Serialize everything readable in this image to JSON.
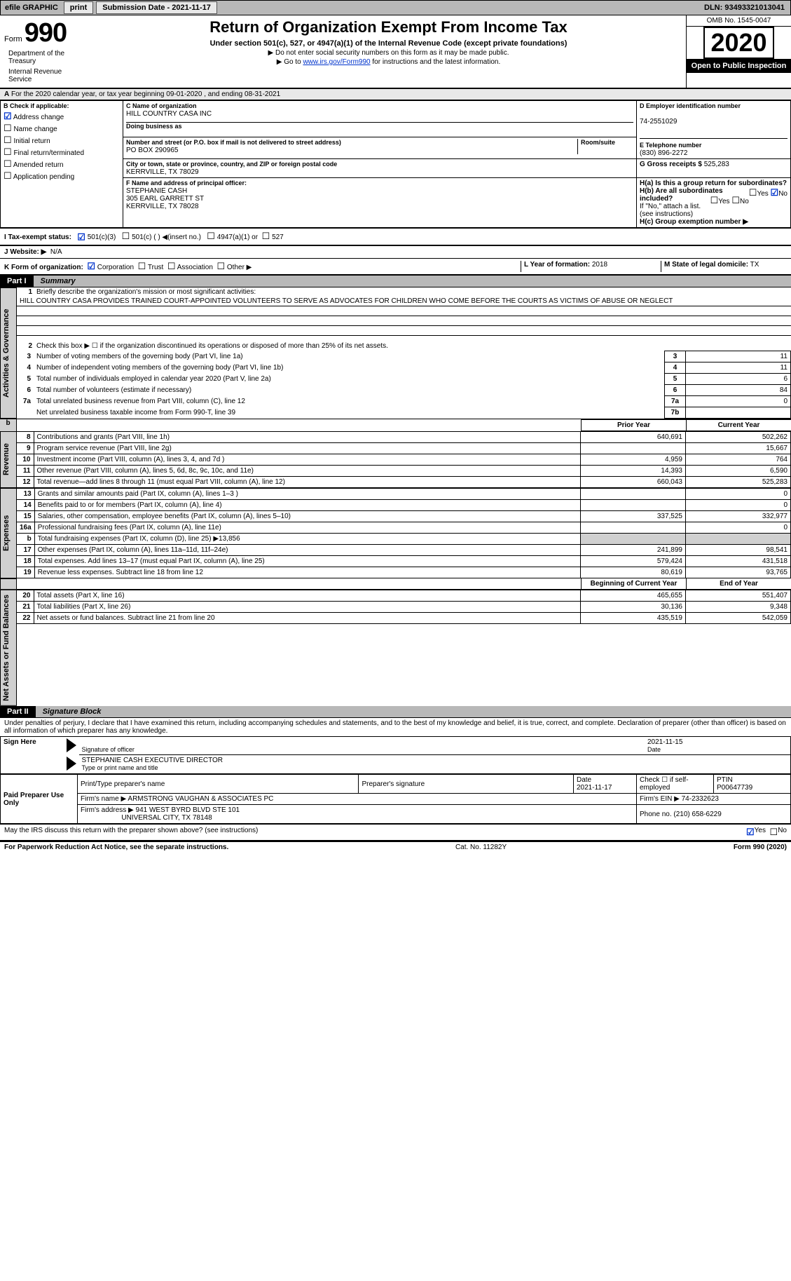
{
  "topbar": {
    "efile_label": "efile GRAPHIC",
    "print_btn": "print",
    "submission_label": "Submission Date - 2021-11-17",
    "dln": "DLN: 93493321013041"
  },
  "header": {
    "form_word": "Form",
    "form_number": "990",
    "title": "Return of Organization Exempt From Income Tax",
    "subtitle": "Under section 501(c), 527, or 4947(a)(1) of the Internal Revenue Code (except private foundations)",
    "note1": "▶ Do not enter social security numbers on this form as it may be made public.",
    "note2_prefix": "▶ Go to ",
    "note2_link": "www.irs.gov/Form990",
    "note2_suffix": " for instructions and the latest information.",
    "dept1": "Department of the Treasury",
    "dept2": "Internal Revenue Service",
    "omb": "OMB No. 1545-0047",
    "year": "2020",
    "open": "Open to Public Inspection"
  },
  "section_a": "For the 2020 calendar year, or tax year beginning 09-01-2020    , and ending 08-31-2021",
  "section_b": {
    "label": "B Check if applicable:",
    "items": [
      {
        "label": "Address change",
        "checked": true
      },
      {
        "label": "Name change",
        "checked": false
      },
      {
        "label": "Initial return",
        "checked": false
      },
      {
        "label": "Final return/terminated",
        "checked": false
      },
      {
        "label": "Amended return",
        "checked": false
      },
      {
        "label": "Application pending",
        "checked": false
      }
    ]
  },
  "section_c": {
    "label": "C Name of organization",
    "name": "HILL COUNTRY CASA INC",
    "dba_label": "Doing business as",
    "dba": "",
    "addr_label": "Number and street (or P.O. box if mail is not delivered to street address)",
    "addr": "PO BOX 290965",
    "room_label": "Room/suite",
    "room": "",
    "city_label": "City or town, state or province, country, and ZIP or foreign postal code",
    "city": "KERRVILLE, TX  78029"
  },
  "section_d": {
    "label": "D Employer identification number",
    "value": "74-2551029"
  },
  "section_e": {
    "label": "E Telephone number",
    "value": "(830) 896-2272"
  },
  "section_g": {
    "label": "G Gross receipts $",
    "value": "525,283"
  },
  "section_f": {
    "label": "F  Name and address of principal officer:",
    "name": "STEPHANIE CASH",
    "addr1": "305 EARL GARRETT ST",
    "addr2": "KERRVILLE, TX  78028"
  },
  "section_h": {
    "ha_label": "H(a)  Is this a group return for subordinates?",
    "ha_yes": "Yes",
    "ha_no": "No",
    "hb_label": "H(b)  Are all subordinates included?",
    "hb_note": "If \"No,\" attach a list. (see instructions)",
    "hc_label": "H(c)  Group exemption number ▶"
  },
  "section_i": {
    "label": "I    Tax-exempt status:",
    "opt1": "501(c)(3)",
    "opt2": "501(c) (  ) ◀(insert no.)",
    "opt3": "4947(a)(1) or",
    "opt4": "527"
  },
  "section_j": {
    "label": "J   Website: ▶",
    "value": "N/A"
  },
  "section_k": {
    "label": "K Form of organization:",
    "opt1": "Corporation",
    "opt2": "Trust",
    "opt3": "Association",
    "opt4": "Other ▶"
  },
  "section_l": {
    "label": "L Year of formation:",
    "value": "2018"
  },
  "section_m": {
    "label": "M State of legal domicile:",
    "value": "TX"
  },
  "part1": {
    "hdr": "Part I",
    "title": "Summary",
    "line1_label": "Briefly describe the organization's mission or most significant activities:",
    "mission": "HILL COUNTRY CASA PROVIDES TRAINED COURT-APPOINTED VOLUNTEERS TO SERVE AS ADVOCATES FOR CHILDREN WHO COME BEFORE THE COURTS AS VICTIMS OF ABUSE OR NEGLECT",
    "line2": "Check this box ▶ ☐  if the organization discontinued its operations or disposed of more than 25% of its net assets.",
    "rows_gov": [
      {
        "n": "3",
        "t": "Number of voting members of the governing body (Part VI, line 1a)",
        "box": "3",
        "val": "11"
      },
      {
        "n": "4",
        "t": "Number of independent voting members of the governing body (Part VI, line 1b)",
        "box": "4",
        "val": "11"
      },
      {
        "n": "5",
        "t": "Total number of individuals employed in calendar year 2020 (Part V, line 2a)",
        "box": "5",
        "val": "6"
      },
      {
        "n": "6",
        "t": "Total number of volunteers (estimate if necessary)",
        "box": "6",
        "val": "84"
      },
      {
        "n": "7a",
        "t": "Total unrelated business revenue from Part VIII, column (C), line 12",
        "box": "7a",
        "val": "0"
      },
      {
        "n": "",
        "t": "Net unrelated business taxable income from Form 990-T, line 39",
        "box": "7b",
        "val": ""
      }
    ],
    "col_prior": "Prior Year",
    "col_current": "Current Year",
    "rev_tab": "Revenue",
    "exp_tab": "Expenses",
    "gov_tab": "Activities & Governance",
    "net_tab": "Net Assets or Fund Balances",
    "rev_rows": [
      {
        "n": "8",
        "t": "Contributions and grants (Part VIII, line 1h)",
        "py": "640,691",
        "cy": "502,262"
      },
      {
        "n": "9",
        "t": "Program service revenue (Part VIII, line 2g)",
        "py": "",
        "cy": "15,667"
      },
      {
        "n": "10",
        "t": "Investment income (Part VIII, column (A), lines 3, 4, and 7d )",
        "py": "4,959",
        "cy": "764"
      },
      {
        "n": "11",
        "t": "Other revenue (Part VIII, column (A), lines 5, 6d, 8c, 9c, 10c, and 11e)",
        "py": "14,393",
        "cy": "6,590"
      },
      {
        "n": "12",
        "t": "Total revenue—add lines 8 through 11 (must equal Part VIII, column (A), line 12)",
        "py": "660,043",
        "cy": "525,283"
      }
    ],
    "exp_rows": [
      {
        "n": "13",
        "t": "Grants and similar amounts paid (Part IX, column (A), lines 1–3 )",
        "py": "",
        "cy": "0"
      },
      {
        "n": "14",
        "t": "Benefits paid to or for members (Part IX, column (A), line 4)",
        "py": "",
        "cy": "0"
      },
      {
        "n": "15",
        "t": "Salaries, other compensation, employee benefits (Part IX, column (A), lines 5–10)",
        "py": "337,525",
        "cy": "332,977"
      },
      {
        "n": "16a",
        "t": "Professional fundraising fees (Part IX, column (A), line 11e)",
        "py": "",
        "cy": "0"
      },
      {
        "n": "b",
        "t": "Total fundraising expenses (Part IX, column (D), line 25) ▶13,856",
        "py": "GREY",
        "cy": "GREY"
      },
      {
        "n": "17",
        "t": "Other expenses (Part IX, column (A), lines 11a–11d, 11f–24e)",
        "py": "241,899",
        "cy": "98,541"
      },
      {
        "n": "18",
        "t": "Total expenses. Add lines 13–17 (must equal Part IX, column (A), line 25)",
        "py": "579,424",
        "cy": "431,518"
      },
      {
        "n": "19",
        "t": "Revenue less expenses. Subtract line 18 from line 12",
        "py": "80,619",
        "cy": "93,765"
      }
    ],
    "col_boy": "Beginning of Current Year",
    "col_eoy": "End of Year",
    "net_rows": [
      {
        "n": "20",
        "t": "Total assets (Part X, line 16)",
        "py": "465,655",
        "cy": "551,407"
      },
      {
        "n": "21",
        "t": "Total liabilities (Part X, line 26)",
        "py": "30,136",
        "cy": "9,348"
      },
      {
        "n": "22",
        "t": "Net assets or fund balances. Subtract line 21 from line 20",
        "py": "435,519",
        "cy": "542,059"
      }
    ]
  },
  "part2": {
    "hdr": "Part II",
    "title": "Signature Block",
    "decl": "Under penalties of perjury, I declare that I have examined this return, including accompanying schedules and statements, and to the best of my knowledge and belief, it is true, correct, and complete. Declaration of preparer (other than officer) is based on all information of which preparer has any knowledge.",
    "sign_here": "Sign Here",
    "sig_officer": "Signature of officer",
    "sig_date": "2021-11-15",
    "date_label": "Date",
    "officer_name": "STEPHANIE CASH  EXECUTIVE DIRECTOR",
    "officer_caption": "Type or print name and title",
    "paid": "Paid Preparer Use Only",
    "prep_name_label": "Print/Type preparer's name",
    "prep_sig_label": "Preparer's signature",
    "prep_date_label": "Date",
    "prep_date": "2021-11-17",
    "self_emp": "Check ☐ if self-employed",
    "ptin_label": "PTIN",
    "ptin": "P00647739",
    "firm_name_label": "Firm's name    ▶",
    "firm_name": "ARMSTRONG VAUGHAN & ASSOCIATES PC",
    "firm_ein_label": "Firm's EIN ▶",
    "firm_ein": "74-2332623",
    "firm_addr_label": "Firm's address ▶",
    "firm_addr1": "941 WEST BYRD BLVD STE 101",
    "firm_addr2": "UNIVERSAL CITY, TX  78148",
    "firm_phone_label": "Phone no.",
    "firm_phone": "(210) 658-6229",
    "discuss": "May the IRS discuss this return with the preparer shown above? (see instructions)",
    "discuss_yes": "Yes",
    "discuss_no": "No"
  },
  "footer": {
    "left": "For Paperwork Reduction Act Notice, see the separate instructions.",
    "mid": "Cat. No. 11282Y",
    "right": "Form 990 (2020)"
  },
  "colors": {
    "link": "#0033cc",
    "grey_bg": "#d0d0d0",
    "shade": "#e8e8e8"
  }
}
